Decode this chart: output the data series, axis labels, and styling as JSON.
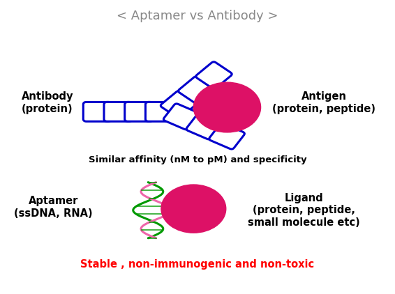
{
  "title": "< Aptamer vs Antibody >",
  "antibody_label": "Antibody\n(protein)",
  "antigen_label": "Antigen\n(protein, peptide)",
  "aptamer_label": "Aptamer\n(ssDNA, RNA)",
  "ligand_label": "Ligand\n(protein, peptide,\nsmall molecule etc)",
  "affinity_text": "Similar affinity (nM to pM) and specificity",
  "stable_text": "Stable , non-immunogenic and non-toxic",
  "bg_color": "#ffffff",
  "border_color": "#999999",
  "title_color": "#888888",
  "antibody_color": "#0000cc",
  "antigen_color": "#dd1166",
  "dna_green": "#009900",
  "dna_pink": "#ee66aa",
  "label_color": "#000000",
  "affinity_color": "#000000",
  "stable_color": "#ff0000",
  "fig_w": 5.66,
  "fig_h": 4.22,
  "dpi": 100
}
